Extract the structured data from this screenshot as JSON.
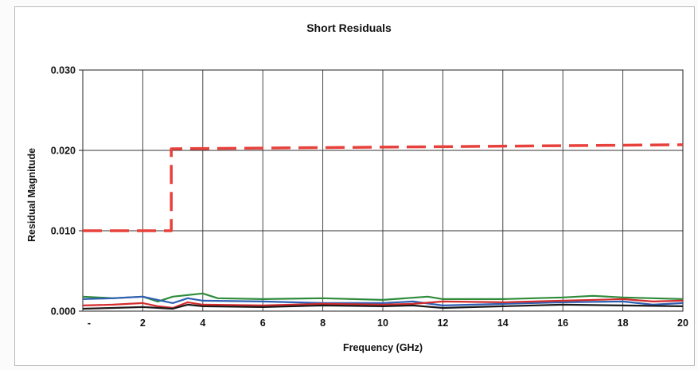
{
  "chart_data": {
    "type": "line",
    "title": "Short Residuals",
    "xlabel": "Frequency (GHz)",
    "ylabel": "Residual Magnitude",
    "xlim": [
      0,
      20
    ],
    "ylim": [
      0,
      0.03
    ],
    "grid": true,
    "x_ticks": [
      "-",
      "2",
      "4",
      "6",
      "8",
      "10",
      "12",
      "14",
      "16",
      "18",
      "20"
    ],
    "y_ticks": [
      "0.000",
      "0.010",
      "0.020",
      "0.030"
    ],
    "series": [
      {
        "color": "#e8413c",
        "style": "dashed",
        "x": [
          0,
          2.95,
          2.95,
          20
        ],
        "y": [
          0.01,
          0.01,
          0.0202,
          0.0207
        ]
      },
      {
        "color": "#2e8b3a",
        "style": "solid",
        "x": [
          0,
          1,
          2,
          2.5,
          3,
          3.5,
          4,
          4.5,
          6,
          8,
          10,
          11.5,
          12,
          14,
          16,
          17,
          18,
          19,
          20
        ],
        "y": [
          0.0018,
          0.0016,
          0.0018,
          0.0012,
          0.0018,
          0.002,
          0.0022,
          0.0016,
          0.0015,
          0.0016,
          0.0014,
          0.0018,
          0.0015,
          0.0015,
          0.0017,
          0.0019,
          0.0017,
          0.0016,
          0.0015
        ]
      },
      {
        "color": "#2e5fb5",
        "style": "solid",
        "x": [
          0,
          1,
          2,
          2.5,
          3,
          3.5,
          4,
          6,
          8,
          10,
          11,
          12,
          14,
          16,
          18,
          19,
          20
        ],
        "y": [
          0.0015,
          0.0016,
          0.0018,
          0.0014,
          0.001,
          0.0016,
          0.0013,
          0.0012,
          0.001,
          0.001,
          0.0012,
          0.0007,
          0.0009,
          0.0011,
          0.0012,
          0.0008,
          0.001
        ]
      },
      {
        "color": "#d42b2b",
        "style": "solid",
        "x": [
          0,
          1,
          2,
          2.5,
          3,
          3.5,
          4,
          6,
          8,
          10,
          11,
          12,
          14,
          16,
          18,
          19,
          20
        ],
        "y": [
          0.0007,
          0.0008,
          0.001,
          0.0006,
          0.0004,
          0.0011,
          0.0008,
          0.0007,
          0.0009,
          0.0008,
          0.0009,
          0.0012,
          0.0011,
          0.0013,
          0.0015,
          0.0012,
          0.0013
        ]
      },
      {
        "color": "#1c1c1c",
        "style": "solid",
        "x": [
          0,
          1,
          2,
          3,
          3.5,
          4,
          6,
          8,
          10,
          11,
          12,
          14,
          16,
          18,
          20
        ],
        "y": [
          0.0003,
          0.0004,
          0.0005,
          0.0003,
          0.0008,
          0.0006,
          0.0005,
          0.0007,
          0.0006,
          0.0007,
          0.0004,
          0.0006,
          0.0008,
          0.0007,
          0.0006
        ]
      }
    ]
  }
}
